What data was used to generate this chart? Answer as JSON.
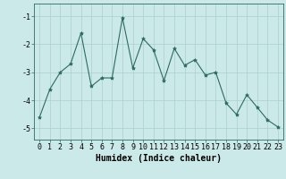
{
  "x": [
    0,
    1,
    2,
    3,
    4,
    5,
    6,
    7,
    8,
    9,
    10,
    11,
    12,
    13,
    14,
    15,
    16,
    17,
    18,
    19,
    20,
    21,
    22,
    23
  ],
  "y": [
    -4.6,
    -3.6,
    -3.0,
    -2.7,
    -1.6,
    -3.5,
    -3.2,
    -3.2,
    -1.05,
    -2.85,
    -1.8,
    -2.2,
    -3.3,
    -2.15,
    -2.75,
    -2.55,
    -3.1,
    -3.0,
    -4.1,
    -4.5,
    -3.8,
    -4.25,
    -4.7,
    -4.95
  ],
  "xlabel": "Humidex (Indice chaleur)",
  "line_color": "#2e6b5e",
  "marker": "*",
  "marker_size": 3,
  "bg_color": "#cce9e9",
  "grid_color": "#aacece",
  "xlim": [
    -0.5,
    23.5
  ],
  "ylim": [
    -5.4,
    -0.55
  ],
  "yticks": [
    -5,
    -4,
    -3,
    -2,
    -1
  ],
  "xticks": [
    0,
    1,
    2,
    3,
    4,
    5,
    6,
    7,
    8,
    9,
    10,
    11,
    12,
    13,
    14,
    15,
    16,
    17,
    18,
    19,
    20,
    21,
    22,
    23
  ],
  "xlabel_fontsize": 7,
  "tick_fontsize": 6
}
